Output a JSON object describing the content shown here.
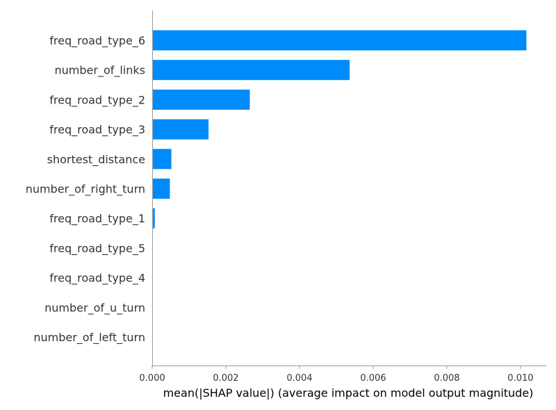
{
  "chart_data": {
    "type": "bar",
    "orientation": "horizontal",
    "title": "",
    "xlabel": "mean(|SHAP value|) (average impact on model output magnitude)",
    "ylabel": "",
    "xlim": [
      0.0,
      0.0107
    ],
    "categories": [
      "freq_road_type_6",
      "number_of_links",
      "freq_road_type_2",
      "freq_road_type_3",
      "shortest_distance",
      "number_of_right_turn",
      "freq_road_type_1",
      "freq_road_type_5",
      "freq_road_type_4",
      "number_of_u_turn",
      "number_of_left_turn"
    ],
    "values": [
      0.01016,
      0.00536,
      0.00265,
      0.00153,
      0.00052,
      0.00048,
      7e-05,
      0.0,
      0.0,
      0.0,
      0.0
    ],
    "x_ticks": [
      0.0,
      0.002,
      0.004,
      0.006,
      0.008,
      0.01
    ],
    "x_tick_labels": [
      "0.000",
      "0.002",
      "0.004",
      "0.006",
      "0.008",
      "0.010"
    ],
    "bar_color": "#008bfb",
    "grid": false
  }
}
